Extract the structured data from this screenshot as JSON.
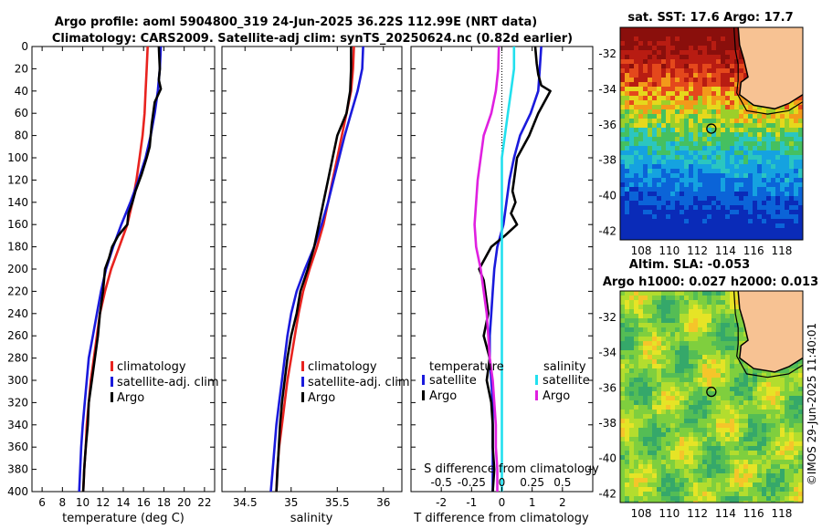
{
  "title": {
    "line1": "Argo profile: aoml 5904800_319 24-Jun-2025 36.22S 112.99E (NRT data)",
    "line2": "Climatology: CARS2009. Satellite-adj clim: synTS_20250624.nc (0.82d earlier)"
  },
  "watermark": "©IMOS 29-Jun-2025 11:40:01",
  "chart_data": [
    {
      "id": "temperature",
      "type": "line",
      "xlabel": "temperature (deg C)",
      "ylabel": "",
      "xlim": [
        5,
        23
      ],
      "ylim": [
        400,
        0
      ],
      "xticks": [
        6,
        8,
        10,
        12,
        14,
        16,
        18,
        20,
        22
      ],
      "xtick_labels": [
        "6",
        "8",
        "10",
        "12",
        "14",
        "16",
        "18",
        "20",
        "22"
      ],
      "yticks": [
        0,
        20,
        40,
        60,
        80,
        100,
        120,
        140,
        160,
        180,
        200,
        220,
        240,
        260,
        280,
        300,
        320,
        340,
        360,
        380,
        400
      ],
      "ytick_labels": [
        "0",
        "20",
        "40",
        "60",
        "80",
        "100",
        "120",
        "140",
        "160",
        "180",
        "200",
        "220",
        "240",
        "260",
        "280",
        "300",
        "320",
        "340",
        "360",
        "380",
        "400"
      ],
      "legend": [
        "climatology",
        "satellite-adj. clim",
        "Argo"
      ],
      "series": [
        {
          "name": "climatology",
          "color": "#e8231f",
          "x": [
            16.4,
            16.3,
            16.2,
            16.1,
            15.9,
            15.6,
            15.3,
            14.9,
            14.4,
            13.6,
            12.8,
            12.2,
            11.7,
            11.4,
            11.1,
            10.8,
            10.6,
            10.4,
            10.3,
            10.15,
            10.05
          ],
          "y": [
            0,
            20,
            40,
            60,
            80,
            100,
            120,
            140,
            160,
            180,
            200,
            220,
            240,
            260,
            280,
            300,
            320,
            340,
            360,
            380,
            400
          ]
        },
        {
          "name": "satellite-adj. clim",
          "color": "#1a1adc",
          "x": [
            17.7,
            17.6,
            17.4,
            17.1,
            16.7,
            16.2,
            15.5,
            14.7,
            13.8,
            13.0,
            12.3,
            11.8,
            11.4,
            11.0,
            10.6,
            10.4,
            10.2,
            10.0,
            9.85,
            9.75,
            9.65
          ],
          "y": [
            0,
            20,
            40,
            60,
            80,
            100,
            120,
            140,
            160,
            180,
            200,
            220,
            240,
            260,
            280,
            300,
            320,
            340,
            360,
            380,
            400
          ]
        },
        {
          "name": "Argo",
          "color": "#000000",
          "x": [
            17.5,
            17.55,
            17.6,
            17.5,
            17.7,
            17.1,
            16.8,
            16.6,
            16.3,
            15.8,
            15.2,
            14.9,
            14.5,
            14.4,
            13.5,
            12.9,
            12.6,
            12.2,
            12.0,
            11.7,
            11.5,
            11.2,
            10.9,
            10.6,
            10.5,
            10.3,
            10.15,
            10.1,
            10.05
          ],
          "y": [
            0,
            10,
            20,
            30,
            38,
            50,
            70,
            90,
            100,
            115,
            130,
            140,
            150,
            160,
            170,
            180,
            190,
            200,
            220,
            240,
            260,
            280,
            300,
            320,
            340,
            360,
            380,
            390,
            400
          ]
        }
      ]
    },
    {
      "id": "salinity",
      "type": "line",
      "xlabel": "salinity",
      "ylabel": "",
      "xlim": [
        34.25,
        36.2
      ],
      "ylim": [
        400,
        0
      ],
      "xticks": [
        34.5,
        35,
        35.5,
        36
      ],
      "xtick_labels": [
        "34.5",
        "35",
        "35.5",
        "36"
      ],
      "legend": [
        "climatology",
        "satellite-adj. clim",
        "Argo"
      ],
      "series": [
        {
          "name": "climatology",
          "color": "#e8231f",
          "x": [
            35.68,
            35.67,
            35.65,
            35.6,
            35.55,
            35.5,
            35.45,
            35.4,
            35.35,
            35.28,
            35.2,
            35.13,
            35.08,
            35.04,
            35.0,
            34.96,
            34.93,
            34.9,
            34.87,
            34.85,
            34.84
          ],
          "y": [
            0,
            20,
            40,
            60,
            80,
            100,
            120,
            140,
            160,
            180,
            200,
            220,
            240,
            260,
            280,
            300,
            320,
            340,
            360,
            380,
            400
          ]
        },
        {
          "name": "satellite-adj. clim",
          "color": "#1a1adc",
          "x": [
            35.78,
            35.77,
            35.72,
            35.65,
            35.58,
            35.52,
            35.46,
            35.4,
            35.33,
            35.25,
            35.15,
            35.06,
            35.0,
            34.96,
            34.93,
            34.9,
            34.87,
            34.84,
            34.82,
            34.8,
            34.78
          ],
          "y": [
            0,
            20,
            40,
            60,
            80,
            100,
            120,
            140,
            160,
            180,
            200,
            220,
            240,
            260,
            280,
            300,
            320,
            340,
            360,
            380,
            400
          ]
        },
        {
          "name": "Argo",
          "color": "#000000",
          "x": [
            35.65,
            35.65,
            35.64,
            35.6,
            35.5,
            35.45,
            35.4,
            35.35,
            35.3,
            35.25,
            35.18,
            35.1,
            35.06,
            35.0,
            34.96,
            34.93,
            34.9,
            34.88,
            34.86,
            34.84
          ],
          "y": [
            0,
            20,
            40,
            60,
            80,
            100,
            120,
            140,
            160,
            180,
            200,
            220,
            240,
            260,
            280,
            300,
            320,
            340,
            370,
            400
          ]
        }
      ]
    },
    {
      "id": "difference",
      "type": "line",
      "xlabel": "T difference from climatology",
      "xlabel_top": "S difference from climatology",
      "xlim": [
        -3,
        3
      ],
      "ylim": [
        400,
        0
      ],
      "xticks": [
        -2,
        -1,
        0,
        1,
        2
      ],
      "xtick_labels": [
        "-2",
        "-1",
        "0",
        "1",
        "2"
      ],
      "s_xticks": [
        -0.5,
        -0.25,
        0,
        0.25,
        0.5
      ],
      "s_xtick_labels": [
        "-0.5",
        "-0.25",
        "0",
        "0.25",
        "0.5"
      ],
      "s_scale": 4,
      "legend_headers": [
        "temperature",
        "salinity"
      ],
      "legend": [
        "satellite",
        "Argo",
        "satellite",
        "Argo"
      ],
      "series": [
        {
          "name": "temperature satellite",
          "color": "#1a1adc",
          "x": [
            1.3,
            1.25,
            1.2,
            0.95,
            0.6,
            0.4,
            0.25,
            0.15,
            0.05,
            -0.15,
            -0.25,
            -0.3,
            -0.35,
            -0.4,
            -0.4,
            -0.35,
            -0.3,
            -0.3,
            -0.3,
            -0.3,
            -0.3
          ],
          "y": [
            0,
            20,
            40,
            60,
            80,
            100,
            120,
            140,
            160,
            180,
            200,
            220,
            240,
            260,
            280,
            300,
            320,
            340,
            360,
            380,
            400
          ]
        },
        {
          "name": "temperature Argo",
          "color": "#000000",
          "x": [
            1.1,
            1.15,
            1.2,
            1.3,
            1.6,
            1.2,
            0.9,
            0.5,
            0.4,
            0.35,
            0.45,
            0.3,
            0.5,
            0.1,
            -0.35,
            -0.55,
            -0.75,
            -0.6,
            -0.55,
            -0.45,
            -0.6,
            -0.4,
            -0.5,
            -0.35,
            -0.3,
            -0.3,
            -0.25,
            -0.3
          ],
          "y": [
            0,
            15,
            25,
            35,
            40,
            60,
            80,
            100,
            120,
            130,
            140,
            150,
            160,
            170,
            180,
            190,
            200,
            210,
            220,
            240,
            260,
            280,
            300,
            320,
            340,
            360,
            380,
            400
          ]
        },
        {
          "name": "salinity satellite",
          "color": "#22e0ee",
          "x": [
            0.4,
            0.4,
            0.3,
            0.2,
            0.1,
            0.0,
            0.0,
            0.0,
            0.0,
            0.0,
            0.0,
            0.0,
            0.0,
            0.0,
            0.0,
            0.0,
            0.0,
            0.0,
            0.0,
            0.0,
            0.0
          ],
          "y": [
            0,
            20,
            40,
            60,
            80,
            100,
            120,
            140,
            160,
            180,
            200,
            220,
            240,
            260,
            280,
            300,
            320,
            340,
            360,
            380,
            400
          ]
        },
        {
          "name": "salinity Argo",
          "color": "#e020e0",
          "x": [
            -0.1,
            -0.12,
            -0.2,
            -0.35,
            -0.6,
            -0.7,
            -0.8,
            -0.85,
            -0.9,
            -0.85,
            -0.7,
            -0.6,
            -0.5,
            -0.45,
            -0.4,
            -0.3,
            -0.25,
            -0.2,
            -0.2,
            -0.15,
            -0.15
          ],
          "y": [
            0,
            20,
            40,
            60,
            80,
            100,
            120,
            140,
            160,
            180,
            200,
            220,
            240,
            260,
            280,
            300,
            320,
            340,
            360,
            380,
            400
          ]
        }
      ]
    },
    {
      "id": "sst-map",
      "type": "heatmap",
      "title": "sat. SST: 17.6 Argo: 17.7",
      "xlim": [
        106.5,
        119.5
      ],
      "ylim": [
        -42.5,
        -30.5
      ],
      "xticks": [
        108,
        110,
        112,
        114,
        116,
        118
      ],
      "xtick_labels": [
        "108",
        "110",
        "112",
        "114",
        "116",
        "118"
      ],
      "yticks": [
        -32,
        -34,
        -36,
        -38,
        -40,
        -42
      ],
      "ytick_labels": [
        "-32",
        "-34",
        "-36",
        "-38",
        "-40",
        "-42"
      ],
      "argo_position": [
        112.99,
        -36.22
      ]
    },
    {
      "id": "sla-map",
      "type": "heatmap",
      "title": "Altim. SLA: -0.053",
      "subtitle": "Argo h1000: 0.027 h2000: 0.013",
      "xlim": [
        106.5,
        119.5
      ],
      "ylim": [
        -42.5,
        -30.5
      ],
      "xticks": [
        108,
        110,
        112,
        114,
        116,
        118
      ],
      "xtick_labels": [
        "108",
        "110",
        "112",
        "114",
        "116",
        "118"
      ],
      "yticks": [
        -32,
        -34,
        -36,
        -38,
        -40,
        -42
      ],
      "ytick_labels": [
        "-32",
        "-34",
        "-36",
        "-38",
        "-40",
        "-42"
      ],
      "argo_position": [
        112.99,
        -36.22
      ]
    }
  ]
}
